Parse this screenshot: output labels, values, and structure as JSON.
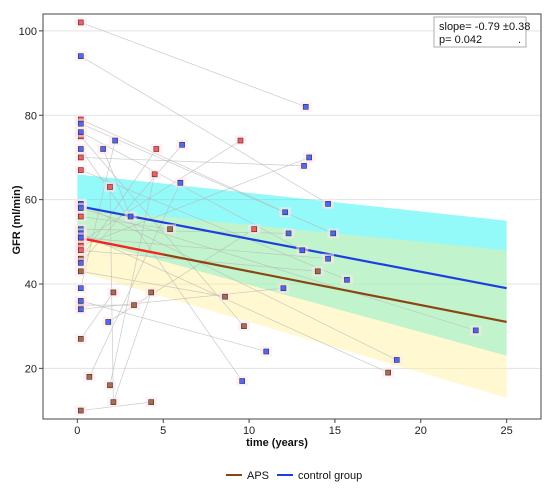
{
  "chart_data": {
    "type": "scatter",
    "title": "",
    "xlabel": "time (years)",
    "ylabel": "GFR (ml/min)",
    "xlim": [
      -2,
      27
    ],
    "ylim": [
      8,
      104
    ],
    "xticks": [
      0,
      5,
      10,
      15,
      20,
      25
    ],
    "yticks": [
      20,
      40,
      60,
      80,
      100
    ],
    "grid": true,
    "legend_position": "bottom-center",
    "annotation": {
      "line1": "slope= -0.79 ±0.38",
      "line2": "p= 0.042",
      "line3": "."
    },
    "legend": [
      {
        "label": "APS",
        "color": "#8B4513"
      },
      {
        "label": "control group",
        "color": "#1E3FE0"
      }
    ],
    "bands": [
      {
        "name": "control group CI",
        "color": "#00F0F0",
        "x": [
          0,
          25
        ],
        "lower": [
          51,
          23
        ],
        "upper": [
          66,
          55
        ]
      },
      {
        "name": "APS CI",
        "color": "#FFEE90",
        "x": [
          0,
          25
        ],
        "lower": [
          43,
          13
        ],
        "upper": [
          58,
          48
        ]
      }
    ],
    "fits": [
      {
        "name": "APS fit",
        "color": "#8B4513",
        "x": [
          0,
          25
        ],
        "y": [
          51,
          31
        ]
      },
      {
        "name": "APS fit (start)",
        "color": "#FF2020",
        "x": [
          0,
          5
        ],
        "y": [
          51,
          47
        ]
      },
      {
        "name": "control group fit",
        "color": "#1E3FE0",
        "x": [
          0,
          25
        ],
        "y": [
          58.5,
          39
        ]
      }
    ],
    "series": [
      {
        "name": "APS (high)",
        "color": "#FF4040",
        "points": [
          {
            "x": 0.2,
            "y": 102
          },
          {
            "x": 0.2,
            "y": 79
          },
          {
            "x": 0.2,
            "y": 75
          },
          {
            "x": 0.2,
            "y": 70
          },
          {
            "x": 0.2,
            "y": 67
          },
          {
            "x": 0.2,
            "y": 59
          },
          {
            "x": 0.2,
            "y": 56
          },
          {
            "x": 0.2,
            "y": 50
          },
          {
            "x": 0.2,
            "y": 49
          },
          {
            "x": 0.2,
            "y": 48
          },
          {
            "x": 1.9,
            "y": 63
          },
          {
            "x": 4.6,
            "y": 72
          },
          {
            "x": 4.5,
            "y": 66
          },
          {
            "x": 9.5,
            "y": 74
          },
          {
            "x": 10.3,
            "y": 53
          }
        ]
      },
      {
        "name": "APS (low)",
        "color": "#A0522D",
        "points": [
          {
            "x": 0.2,
            "y": 46
          },
          {
            "x": 0.2,
            "y": 43
          },
          {
            "x": 0.2,
            "y": 35
          },
          {
            "x": 0.2,
            "y": 27
          },
          {
            "x": 0.2,
            "y": 10
          },
          {
            "x": 0.7,
            "y": 18
          },
          {
            "x": 1.9,
            "y": 16
          },
          {
            "x": 2.1,
            "y": 12
          },
          {
            "x": 2.1,
            "y": 38
          },
          {
            "x": 3.3,
            "y": 35
          },
          {
            "x": 4.3,
            "y": 38
          },
          {
            "x": 4.3,
            "y": 12
          },
          {
            "x": 5.4,
            "y": 53
          },
          {
            "x": 8.6,
            "y": 37
          },
          {
            "x": 9.7,
            "y": 30
          },
          {
            "x": 14.0,
            "y": 43
          },
          {
            "x": 18.1,
            "y": 19
          }
        ]
      },
      {
        "name": "control group",
        "color": "#3050FF",
        "points": [
          {
            "x": 0.2,
            "y": 94
          },
          {
            "x": 0.2,
            "y": 78
          },
          {
            "x": 0.2,
            "y": 76
          },
          {
            "x": 0.2,
            "y": 72
          },
          {
            "x": 0.2,
            "y": 59
          },
          {
            "x": 0.2,
            "y": 58
          },
          {
            "x": 0.2,
            "y": 53
          },
          {
            "x": 0.2,
            "y": 52
          },
          {
            "x": 0.2,
            "y": 51
          },
          {
            "x": 0.2,
            "y": 45
          },
          {
            "x": 0.2,
            "y": 39
          },
          {
            "x": 0.2,
            "y": 36
          },
          {
            "x": 0.2,
            "y": 34
          },
          {
            "x": 1.5,
            "y": 72
          },
          {
            "x": 2.2,
            "y": 74
          },
          {
            "x": 1.8,
            "y": 31
          },
          {
            "x": 3.1,
            "y": 56
          },
          {
            "x": 6.1,
            "y": 73
          },
          {
            "x": 6.0,
            "y": 64
          },
          {
            "x": 9.6,
            "y": 17
          },
          {
            "x": 11.0,
            "y": 24
          },
          {
            "x": 12.0,
            "y": 39
          },
          {
            "x": 12.1,
            "y": 57
          },
          {
            "x": 12.3,
            "y": 52
          },
          {
            "x": 13.1,
            "y": 48
          },
          {
            "x": 13.2,
            "y": 68
          },
          {
            "x": 13.3,
            "y": 82
          },
          {
            "x": 13.5,
            "y": 70
          },
          {
            "x": 14.6,
            "y": 46
          },
          {
            "x": 14.6,
            "y": 59
          },
          {
            "x": 14.9,
            "y": 52
          },
          {
            "x": 15.7,
            "y": 41
          },
          {
            "x": 18.6,
            "y": 22
          },
          {
            "x": 23.2,
            "y": 29
          }
        ]
      }
    ],
    "trajectories": [
      [
        [
          0.2,
          102
        ],
        [
          13.3,
          82
        ]
      ],
      [
        [
          0.2,
          94
        ],
        [
          14.6,
          59
        ]
      ],
      [
        [
          0.2,
          79
        ],
        [
          12.1,
          57
        ]
      ],
      [
        [
          0.2,
          78
        ],
        [
          14.9,
          52
        ]
      ],
      [
        [
          0.2,
          76
        ],
        [
          13.1,
          48
        ]
      ],
      [
        [
          0.2,
          75
        ],
        [
          9.7,
          30
        ]
      ],
      [
        [
          0.2,
          72
        ],
        [
          9.6,
          17
        ]
      ],
      [
        [
          0.2,
          70
        ],
        [
          13.2,
          68
        ]
      ],
      [
        [
          0.2,
          67
        ],
        [
          15.7,
          41
        ]
      ],
      [
        [
          0.2,
          59
        ],
        [
          18.6,
          22
        ]
      ],
      [
        [
          0.2,
          58
        ],
        [
          23.2,
          29
        ]
      ],
      [
        [
          0.2,
          56
        ],
        [
          5.4,
          53
        ]
      ],
      [
        [
          0.2,
          53
        ],
        [
          12.3,
          52
        ]
      ],
      [
        [
          0.2,
          52
        ],
        [
          18.1,
          19
        ]
      ],
      [
        [
          0.2,
          51
        ],
        [
          14.6,
          46
        ]
      ],
      [
        [
          0.2,
          50
        ],
        [
          9.5,
          74
        ]
      ],
      [
        [
          0.2,
          49
        ],
        [
          13.5,
          70
        ]
      ],
      [
        [
          0.2,
          48
        ],
        [
          14.0,
          43
        ]
      ],
      [
        [
          0.2,
          46
        ],
        [
          4.6,
          72
        ]
      ],
      [
        [
          0.2,
          45
        ],
        [
          6.1,
          73
        ]
      ],
      [
        [
          0.2,
          43
        ],
        [
          8.6,
          37
        ]
      ],
      [
        [
          0.2,
          39
        ],
        [
          2.2,
          74
        ]
      ],
      [
        [
          0.2,
          36
        ],
        [
          11.0,
          24
        ]
      ],
      [
        [
          0.2,
          35
        ],
        [
          3.3,
          35
        ]
      ],
      [
        [
          0.2,
          34
        ],
        [
          12.0,
          39
        ]
      ],
      [
        [
          0.2,
          27
        ],
        [
          2.1,
          38
        ]
      ],
      [
        [
          0.7,
          18
        ],
        [
          6.0,
          64
        ]
      ],
      [
        [
          1.9,
          16
        ],
        [
          4.5,
          66
        ]
      ],
      [
        [
          2.1,
          12
        ],
        [
          4.3,
          38
        ]
      ],
      [
        [
          0.2,
          10
        ],
        [
          4.3,
          12
        ]
      ],
      [
        [
          1.8,
          31
        ],
        [
          10.3,
          53
        ]
      ],
      [
        [
          1.5,
          72
        ],
        [
          3.1,
          56
        ]
      ],
      [
        [
          1.9,
          63
        ],
        [
          2.1,
          12
        ]
      ]
    ]
  }
}
